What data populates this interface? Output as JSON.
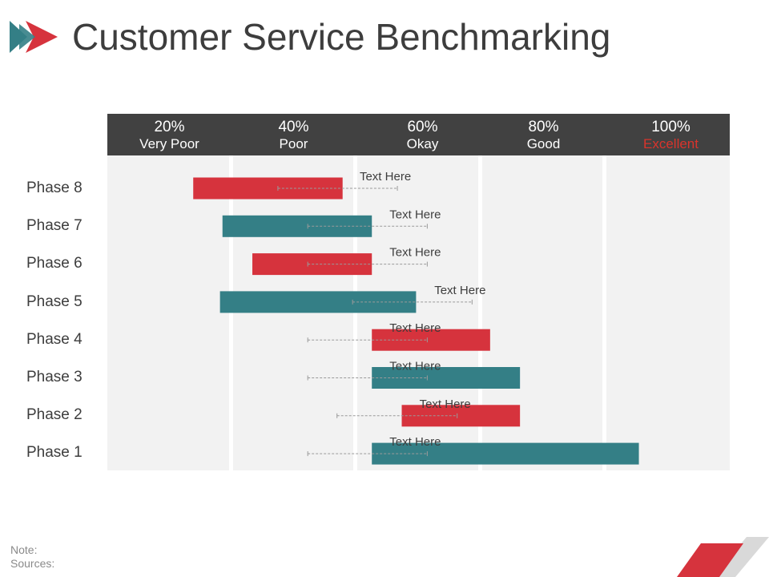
{
  "title": "Customer Service Benchmarking",
  "columns": [
    {
      "pct": "20%",
      "label": "Very Poor",
      "accent": false
    },
    {
      "pct": "40%",
      "label": "Poor",
      "accent": false
    },
    {
      "pct": "60%",
      "label": "Okay",
      "accent": false
    },
    {
      "pct": "80%",
      "label": "Good",
      "accent": false
    },
    {
      "pct": "100%",
      "label": "Excellent",
      "accent": true
    }
  ],
  "colors": {
    "red": "#d6333d",
    "teal": "#347f86",
    "header": "#414141",
    "background": "#f2f2f2",
    "accent_text": "#d9342c"
  },
  "note": {
    "note_label": "Note:",
    "sources_label": "Sources:"
  },
  "chart_data": {
    "type": "bar",
    "orientation": "horizontal-range",
    "xlim": [
      10,
      110
    ],
    "categories": [
      "Phase 8",
      "Phase 7",
      "Phase 6",
      "Phase 5",
      "Phase 4",
      "Phase 3",
      "Phase 2",
      "Phase 1"
    ],
    "series": [
      {
        "ranges": [
          [
            23.8,
            47.8
          ],
          [
            28.5,
            52.5
          ],
          [
            33.3,
            52.5
          ],
          [
            28.1,
            59.6
          ],
          [
            52.5,
            71.5
          ],
          [
            52.5,
            76.3
          ],
          [
            57.3,
            76.3
          ],
          [
            52.5,
            95.4
          ]
        ],
        "colors": [
          "#d6333d",
          "#347f86",
          "#d6333d",
          "#347f86",
          "#d6333d",
          "#347f86",
          "#d6333d",
          "#347f86"
        ]
      }
    ],
    "annotations": [
      "Text Here",
      "Text Here",
      "Text Here",
      "Text Here",
      "Text Here",
      "Text Here",
      "Text Here",
      "Text Here"
    ],
    "annotation_lines": [
      [
        37.4,
        56.6
      ],
      [
        42.2,
        61.4
      ],
      [
        42.2,
        61.4
      ],
      [
        49.4,
        68.6
      ],
      [
        42.2,
        61.4
      ],
      [
        42.2,
        61.4
      ],
      [
        46.9,
        66.2
      ],
      [
        42.2,
        61.4
      ]
    ]
  }
}
